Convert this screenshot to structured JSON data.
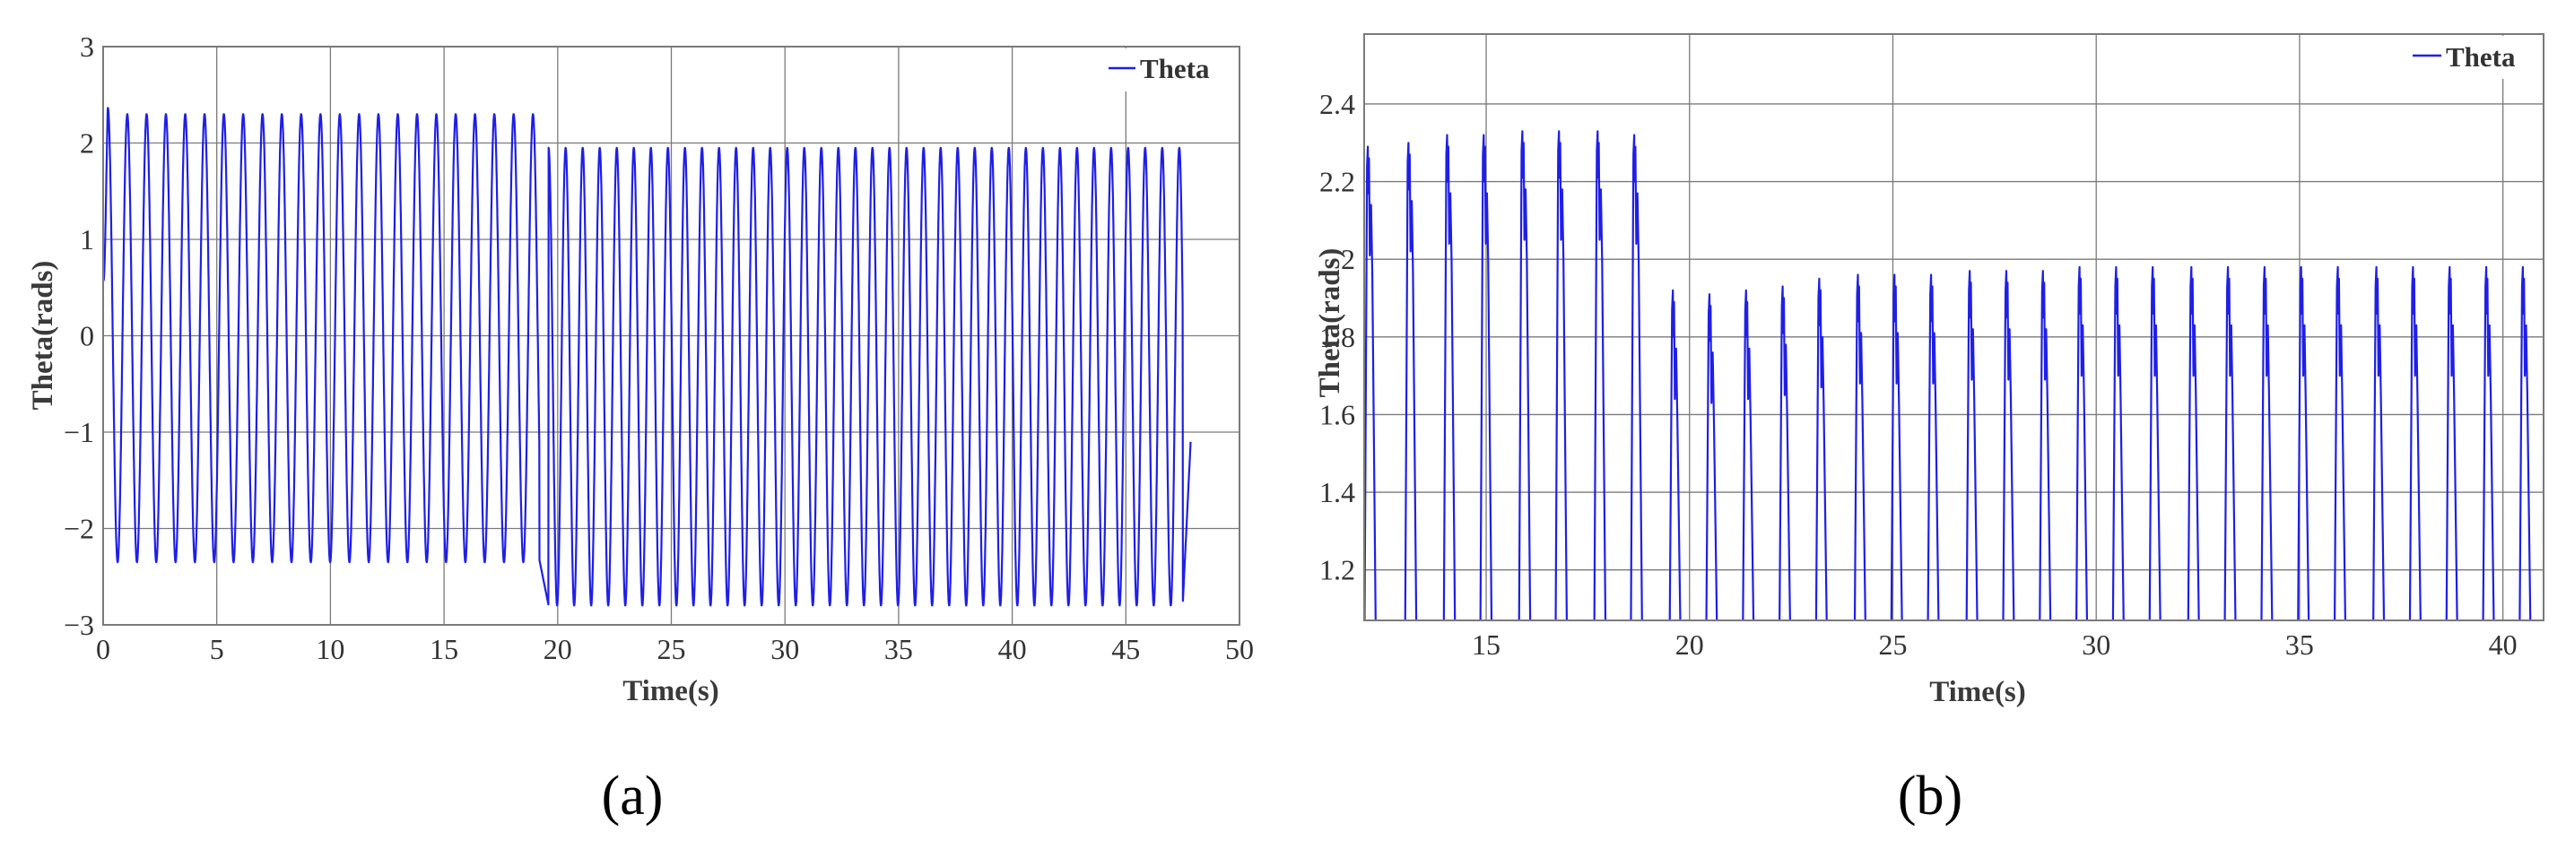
{
  "colors": {
    "line": "#1f1fe6",
    "grid": "#7a7a7a",
    "axis": "#7a7a7a",
    "background": "#ffffff"
  },
  "panels": [
    {
      "caption": "(a)"
    },
    {
      "caption": "(b)"
    }
  ],
  "chart_data": [
    {
      "type": "line",
      "xlabel": "Time(s)",
      "ylabel": "Theta(rads)",
      "xlim": [
        0,
        50
      ],
      "ylim": [
        -3,
        3
      ],
      "xticks": [
        0,
        5,
        10,
        15,
        20,
        25,
        30,
        35,
        40,
        45,
        50
      ],
      "yticks": [
        -3,
        -2,
        -1,
        0,
        1,
        2,
        3
      ],
      "grid": true,
      "legend_position": "top-right",
      "series": [
        {
          "name": "Theta",
          "segments": [
            {
              "t_start": 0,
              "t_end": 19.2,
              "period": 0.85,
              "max": 2.3,
              "min": -2.35
            },
            {
              "t_start": 19.6,
              "t_end": 47.5,
              "period": 0.75,
              "max": 1.95,
              "min": -2.8
            }
          ],
          "initial_peak": 2.42,
          "end_value": -1.1
        }
      ]
    },
    {
      "type": "line",
      "xlabel": "Time(s)",
      "ylabel": "Theta(rads)",
      "xlim": [
        12,
        41
      ],
      "ylim": [
        1.07,
        2.58
      ],
      "xticks": [
        15,
        20,
        25,
        30,
        35,
        40
      ],
      "yticks": [
        1.2,
        1.4,
        1.6,
        1.8,
        2,
        2.2,
        2.4
      ],
      "grid": true,
      "legend_position": "top-right",
      "series": [
        {
          "name": "Theta",
          "peaks": [
            {
              "t": 12.1,
              "v": 2.29
            },
            {
              "t": 13.1,
              "v": 2.3
            },
            {
              "t": 14.05,
              "v": 2.32
            },
            {
              "t": 14.95,
              "v": 2.32
            },
            {
              "t": 15.9,
              "v": 2.33
            },
            {
              "t": 16.8,
              "v": 2.33
            },
            {
              "t": 17.75,
              "v": 2.33
            },
            {
              "t": 18.65,
              "v": 2.32
            },
            {
              "t": 19.6,
              "v": 1.92
            },
            {
              "t": 20.5,
              "v": 1.91
            },
            {
              "t": 21.4,
              "v": 1.92
            },
            {
              "t": 22.3,
              "v": 1.93
            },
            {
              "t": 23.2,
              "v": 1.95
            },
            {
              "t": 24.15,
              "v": 1.96
            },
            {
              "t": 25.05,
              "v": 1.96
            },
            {
              "t": 25.95,
              "v": 1.96
            },
            {
              "t": 26.9,
              "v": 1.97
            },
            {
              "t": 27.8,
              "v": 1.97
            },
            {
              "t": 28.7,
              "v": 1.97
            },
            {
              "t": 29.6,
              "v": 1.98
            },
            {
              "t": 30.5,
              "v": 1.98
            },
            {
              "t": 31.4,
              "v": 1.98
            },
            {
              "t": 32.35,
              "v": 1.98
            },
            {
              "t": 33.25,
              "v": 1.98
            },
            {
              "t": 34.15,
              "v": 1.98
            },
            {
              "t": 35.05,
              "v": 1.98
            },
            {
              "t": 35.95,
              "v": 1.98
            },
            {
              "t": 36.9,
              "v": 1.98
            },
            {
              "t": 37.8,
              "v": 1.98
            },
            {
              "t": 38.7,
              "v": 1.98
            },
            {
              "t": 39.6,
              "v": 1.98
            },
            {
              "t": 40.5,
              "v": 1.98
            }
          ]
        }
      ]
    }
  ]
}
